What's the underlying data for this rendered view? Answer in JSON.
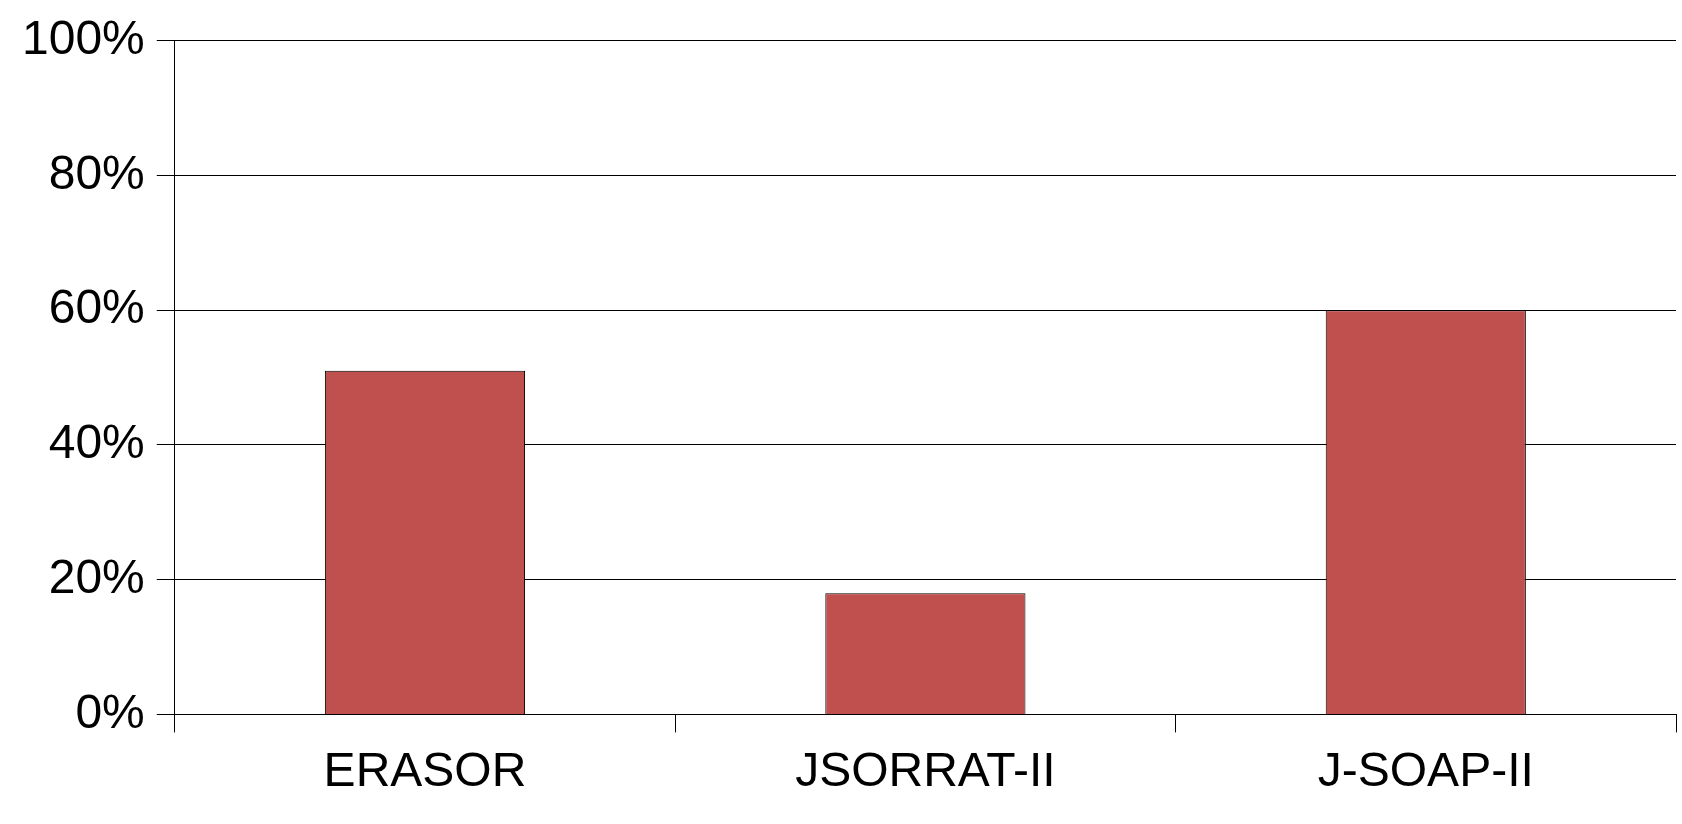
{
  "chart_data": {
    "type": "bar",
    "categories": [
      "ERASOR",
      "JSORRAT-II",
      "J-SOAP-II"
    ],
    "values": [
      51,
      18,
      60
    ],
    "color": "#c0504d",
    "ylim": [
      0,
      100
    ],
    "yticks": [
      {
        "value": 0,
        "label": "0%"
      },
      {
        "value": 20,
        "label": "20%"
      },
      {
        "value": 40,
        "label": "40%"
      },
      {
        "value": 60,
        "label": "60%"
      },
      {
        "value": 80,
        "label": "80%"
      },
      {
        "value": 100,
        "label": "100%"
      }
    ],
    "grid": "y",
    "legend": false
  }
}
